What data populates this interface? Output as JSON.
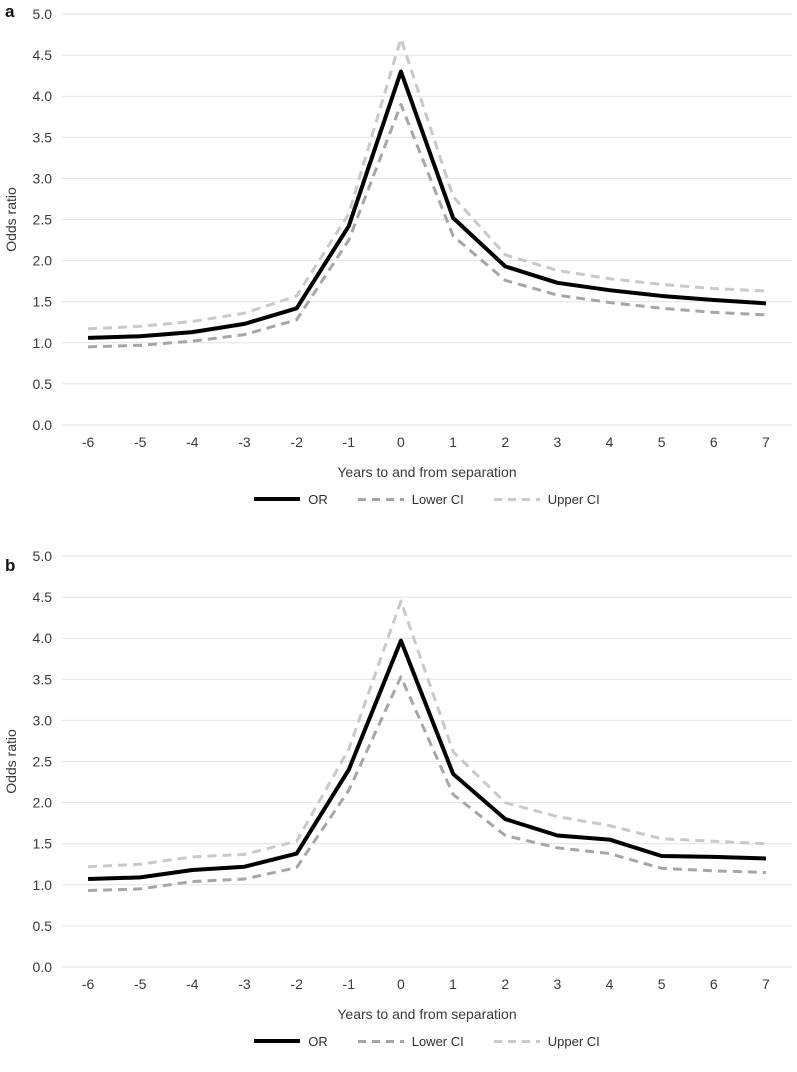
{
  "panels": [
    {
      "label": "a"
    },
    {
      "label": "b"
    }
  ],
  "chart_data": [
    {
      "type": "line",
      "panel_label": "a",
      "x": [
        -6,
        -5,
        -4,
        -3,
        -2,
        -1,
        0,
        1,
        2,
        3,
        4,
        5,
        6,
        7
      ],
      "series": [
        {
          "name": "OR",
          "style": "solid",
          "color": "#000000",
          "width": 4,
          "values": [
            1.06,
            1.08,
            1.13,
            1.23,
            1.42,
            2.42,
            4.3,
            2.52,
            1.93,
            1.73,
            1.64,
            1.57,
            1.52,
            1.48
          ]
        },
        {
          "name": "Lower CI",
          "style": "dashed",
          "color": "#a6a6a6",
          "width": 3,
          "values": [
            0.95,
            0.97,
            1.02,
            1.1,
            1.28,
            2.25,
            3.9,
            2.3,
            1.76,
            1.58,
            1.49,
            1.42,
            1.37,
            1.34
          ]
        },
        {
          "name": "Upper CI",
          "style": "dashed",
          "color": "#c9c9c9",
          "width": 3,
          "values": [
            1.17,
            1.2,
            1.26,
            1.36,
            1.57,
            2.57,
            4.7,
            2.78,
            2.07,
            1.88,
            1.78,
            1.71,
            1.66,
            1.63
          ]
        }
      ],
      "xlabel": "Years to and from separation",
      "ylabel": "Odds ratio",
      "ylim": [
        0,
        5
      ],
      "ytick_step": 0.5,
      "grid": true,
      "gridline_color": "#e2e2e2",
      "axis_text_color": "#3a3a3a",
      "legend_position": "bottom"
    },
    {
      "type": "line",
      "panel_label": "b",
      "x": [
        -6,
        -5,
        -4,
        -3,
        -2,
        -1,
        0,
        1,
        2,
        3,
        4,
        5,
        6,
        7
      ],
      "series": [
        {
          "name": "OR",
          "style": "solid",
          "color": "#000000",
          "width": 4,
          "values": [
            1.07,
            1.09,
            1.18,
            1.22,
            1.38,
            2.4,
            3.97,
            2.35,
            1.8,
            1.6,
            1.55,
            1.35,
            1.34,
            1.32
          ]
        },
        {
          "name": "Lower CI",
          "style": "dashed",
          "color": "#a6a6a6",
          "width": 3,
          "values": [
            0.93,
            0.95,
            1.04,
            1.07,
            1.21,
            2.15,
            3.53,
            2.1,
            1.6,
            1.45,
            1.38,
            1.2,
            1.17,
            1.15
          ]
        },
        {
          "name": "Upper CI",
          "style": "dashed",
          "color": "#c9c9c9",
          "width": 3,
          "values": [
            1.22,
            1.25,
            1.34,
            1.37,
            1.53,
            2.65,
            4.45,
            2.62,
            2.0,
            1.83,
            1.72,
            1.56,
            1.53,
            1.5
          ]
        }
      ],
      "xlabel": "Years to and from separation",
      "ylabel": "Odds ratio",
      "ylim": [
        0,
        5
      ],
      "ytick_step": 0.5,
      "grid": true,
      "gridline_color": "#e2e2e2",
      "axis_text_color": "#3a3a3a",
      "legend_position": "bottom"
    }
  ]
}
